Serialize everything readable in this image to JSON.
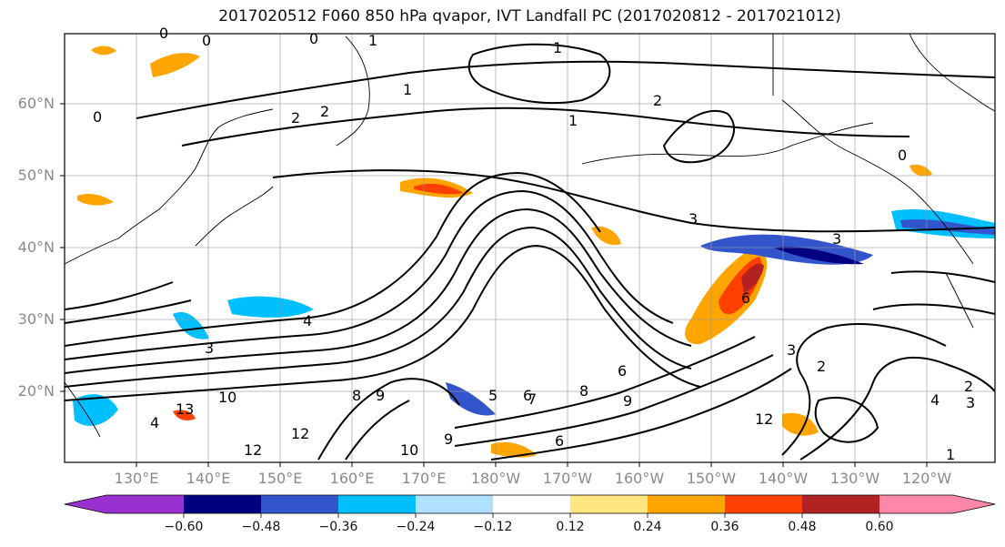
{
  "title": "2017020512 F060 850 hPa qvapor, IVT Landfall PC (2017020812 - 2017021012)",
  "lat_labels": [
    "60°N",
    "50°N",
    "40°N",
    "30°N",
    "20°N"
  ],
  "lon_labels": [
    "130°E",
    "140°E",
    "150°E",
    "160°E",
    "170°E",
    "180°W",
    "170°W",
    "160°W",
    "150°W",
    "140°W",
    "130°W",
    "120°W"
  ],
  "colorbar": {
    "ticks": [
      "−0.60",
      "−0.48",
      "−0.36",
      "−0.24",
      "−0.12",
      "0.12",
      "0.24",
      "0.36",
      "0.48",
      "0.60"
    ],
    "colors": [
      "#9b30d0",
      "#000080",
      "#3355cc",
      "#00bfff",
      "#b0e0ff",
      "#ffffff",
      "#ffe680",
      "#ffa500",
      "#ff4000",
      "#b22222",
      "#ff88aa"
    ]
  },
  "contour_labels": [
    "0",
    "0",
    "0",
    "1",
    "1",
    "1",
    "2",
    "2",
    "2",
    "1",
    "0",
    "0",
    "3",
    "3",
    "4",
    "6",
    "6",
    "6",
    "8",
    "9",
    "9",
    "9",
    "10",
    "12",
    "12",
    "12",
    "7",
    "5",
    "6",
    "8",
    "10",
    "13",
    "3",
    "3",
    "4",
    "4",
    "3",
    "2",
    "2",
    "1"
  ]
}
